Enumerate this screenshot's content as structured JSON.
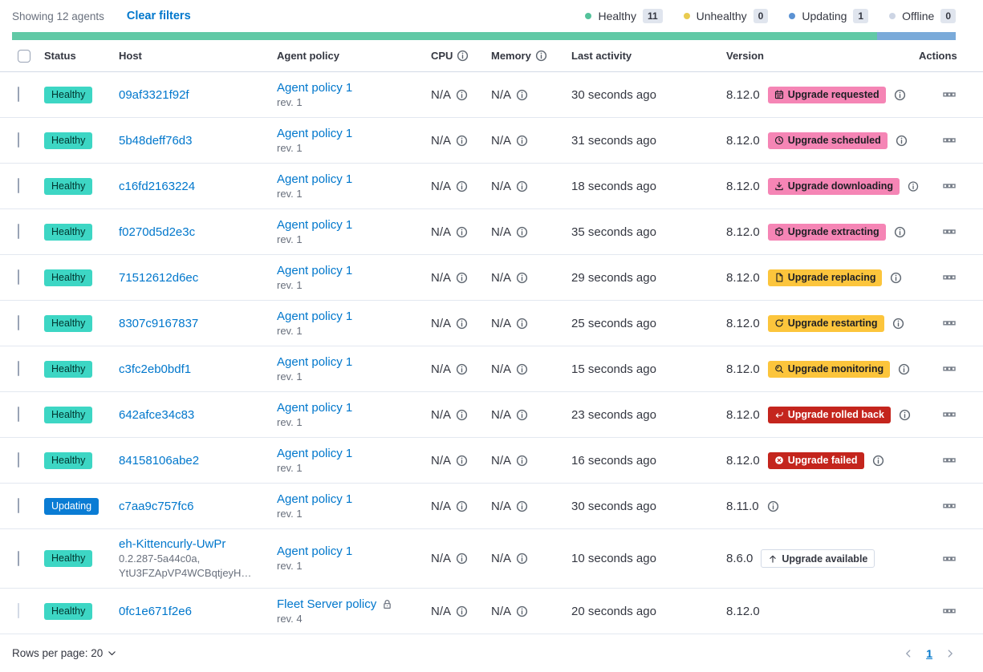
{
  "colors": {
    "link": "#0077cc",
    "healthy_badge_bg": "#3dd6c4",
    "healthy_badge_text": "#00342e",
    "updating_badge_bg": "#0a7cd4",
    "updating_badge_text": "#ffffff",
    "accent_badge_bg": "#f585b5",
    "accent_badge_text": "#1d1e24",
    "warning_badge_bg": "#fcc53c",
    "warning_badge_text": "#1d1e24",
    "danger_badge_bg": "#c4251d",
    "danger_badge_text": "#ffffff"
  },
  "header_bar": {
    "showing_text": "Showing 12 agents",
    "clear_filters_label": "Clear filters",
    "legend": [
      {
        "label": "Healthy",
        "count": "11",
        "dot_color": "#54c29b"
      },
      {
        "label": "Unhealthy",
        "count": "0",
        "dot_color": "#e9cb4f"
      },
      {
        "label": "Updating",
        "count": "1",
        "dot_color": "#5b92d3"
      },
      {
        "label": "Offline",
        "count": "0",
        "dot_color": "#cdd5e4"
      }
    ],
    "health_bar_segments": [
      {
        "status": "healthy",
        "color": "#61c9a6",
        "fraction": 0.9167
      },
      {
        "status": "updating",
        "color": "#7aaad9",
        "fraction": 0.0833
      }
    ]
  },
  "table": {
    "columns": [
      {
        "label": "Status"
      },
      {
        "label": "Host"
      },
      {
        "label": "Agent policy"
      },
      {
        "label": "CPU",
        "info": true
      },
      {
        "label": "Memory",
        "info": true
      },
      {
        "label": "Last activity"
      },
      {
        "label": "Version"
      },
      {
        "label": "Actions",
        "align": "right"
      }
    ]
  },
  "rows": [
    {
      "status": {
        "label": "Healthy",
        "variant": "healthy"
      },
      "host": {
        "name": "09af3321f92f",
        "sub_lines": []
      },
      "policy": {
        "name": "Agent policy 1",
        "rev": "rev. 1",
        "locked": false
      },
      "cpu": "N/A",
      "memory": "N/A",
      "last_activity": "30 seconds ago",
      "version": "8.12.0",
      "upgrade_badge": {
        "label": "Upgrade requested",
        "variant": "accent",
        "icon": "calendar-icon"
      },
      "version_info": true,
      "checkbox_disabled": false
    },
    {
      "status": {
        "label": "Healthy",
        "variant": "healthy"
      },
      "host": {
        "name": "5b48deff76d3",
        "sub_lines": []
      },
      "policy": {
        "name": "Agent policy 1",
        "rev": "rev. 1",
        "locked": false
      },
      "cpu": "N/A",
      "memory": "N/A",
      "last_activity": "31 seconds ago",
      "version": "8.12.0",
      "upgrade_badge": {
        "label": "Upgrade scheduled",
        "variant": "accent",
        "icon": "clock-icon"
      },
      "version_info": true,
      "checkbox_disabled": false
    },
    {
      "status": {
        "label": "Healthy",
        "variant": "healthy"
      },
      "host": {
        "name": "c16fd2163224",
        "sub_lines": []
      },
      "policy": {
        "name": "Agent policy 1",
        "rev": "rev. 1",
        "locked": false
      },
      "cpu": "N/A",
      "memory": "N/A",
      "last_activity": "18 seconds ago",
      "version": "8.12.0",
      "upgrade_badge": {
        "label": "Upgrade downloading",
        "variant": "accent",
        "icon": "download-icon"
      },
      "version_info": true,
      "checkbox_disabled": false
    },
    {
      "status": {
        "label": "Healthy",
        "variant": "healthy"
      },
      "host": {
        "name": "f0270d5d2e3c",
        "sub_lines": []
      },
      "policy": {
        "name": "Agent policy 1",
        "rev": "rev. 1",
        "locked": false
      },
      "cpu": "N/A",
      "memory": "N/A",
      "last_activity": "35 seconds ago",
      "version": "8.12.0",
      "upgrade_badge": {
        "label": "Upgrade extracting",
        "variant": "accent",
        "icon": "package-icon"
      },
      "version_info": true,
      "checkbox_disabled": false
    },
    {
      "status": {
        "label": "Healthy",
        "variant": "healthy"
      },
      "host": {
        "name": "71512612d6ec",
        "sub_lines": []
      },
      "policy": {
        "name": "Agent policy 1",
        "rev": "rev. 1",
        "locked": false
      },
      "cpu": "N/A",
      "memory": "N/A",
      "last_activity": "29 seconds ago",
      "version": "8.12.0",
      "upgrade_badge": {
        "label": "Upgrade replacing",
        "variant": "warning",
        "icon": "document-icon"
      },
      "version_info": true,
      "checkbox_disabled": false
    },
    {
      "status": {
        "label": "Healthy",
        "variant": "healthy"
      },
      "host": {
        "name": "8307c9167837",
        "sub_lines": []
      },
      "policy": {
        "name": "Agent policy 1",
        "rev": "rev. 1",
        "locked": false
      },
      "cpu": "N/A",
      "memory": "N/A",
      "last_activity": "25 seconds ago",
      "version": "8.12.0",
      "upgrade_badge": {
        "label": "Upgrade restarting",
        "variant": "warning",
        "icon": "refresh-icon"
      },
      "version_info": true,
      "checkbox_disabled": false
    },
    {
      "status": {
        "label": "Healthy",
        "variant": "healthy"
      },
      "host": {
        "name": "c3fc2eb0bdf1",
        "sub_lines": []
      },
      "policy": {
        "name": "Agent policy 1",
        "rev": "rev. 1",
        "locked": false
      },
      "cpu": "N/A",
      "memory": "N/A",
      "last_activity": "15 seconds ago",
      "version": "8.12.0",
      "upgrade_badge": {
        "label": "Upgrade monitoring",
        "variant": "warning",
        "icon": "inspect-icon"
      },
      "version_info": true,
      "checkbox_disabled": false
    },
    {
      "status": {
        "label": "Healthy",
        "variant": "healthy"
      },
      "host": {
        "name": "642afce34c83",
        "sub_lines": []
      },
      "policy": {
        "name": "Agent policy 1",
        "rev": "rev. 1",
        "locked": false
      },
      "cpu": "N/A",
      "memory": "N/A",
      "last_activity": "23 seconds ago",
      "version": "8.12.0",
      "upgrade_badge": {
        "label": "Upgrade rolled back",
        "variant": "danger",
        "icon": "return-icon"
      },
      "version_info": true,
      "checkbox_disabled": false
    },
    {
      "status": {
        "label": "Healthy",
        "variant": "healthy"
      },
      "host": {
        "name": "84158106abe2",
        "sub_lines": []
      },
      "policy": {
        "name": "Agent policy 1",
        "rev": "rev. 1",
        "locked": false
      },
      "cpu": "N/A",
      "memory": "N/A",
      "last_activity": "16 seconds ago",
      "version": "8.12.0",
      "upgrade_badge": {
        "label": "Upgrade failed",
        "variant": "danger",
        "icon": "error-icon"
      },
      "version_info": true,
      "checkbox_disabled": false
    },
    {
      "status": {
        "label": "Updating",
        "variant": "updating"
      },
      "host": {
        "name": "c7aa9c757fc6",
        "sub_lines": []
      },
      "policy": {
        "name": "Agent policy 1",
        "rev": "rev. 1",
        "locked": false
      },
      "cpu": "N/A",
      "memory": "N/A",
      "last_activity": "30 seconds ago",
      "version": "8.11.0",
      "upgrade_badge": null,
      "version_info": true,
      "checkbox_disabled": false
    },
    {
      "status": {
        "label": "Healthy",
        "variant": "healthy"
      },
      "host": {
        "name": "eh-Kittencurly-UwPr",
        "sub_lines": [
          "0.2.287-5a44c0a,",
          "YtU3FZApVP4WCBqtjeyH…"
        ]
      },
      "policy": {
        "name": "Agent policy 1",
        "rev": "rev. 1",
        "locked": false
      },
      "cpu": "N/A",
      "memory": "N/A",
      "last_activity": "10 seconds ago",
      "version": "8.6.0",
      "upgrade_badge": {
        "label": "Upgrade available",
        "variant": "hollow",
        "icon": "arrow-up-icon"
      },
      "version_info": false,
      "checkbox_disabled": false
    },
    {
      "status": {
        "label": "Healthy",
        "variant": "healthy"
      },
      "host": {
        "name": "0fc1e671f2e6",
        "sub_lines": []
      },
      "policy": {
        "name": "Fleet Server policy",
        "rev": "rev. 4",
        "locked": true
      },
      "cpu": "N/A",
      "memory": "N/A",
      "last_activity": "20 seconds ago",
      "version": "8.12.0",
      "upgrade_badge": null,
      "version_info": false,
      "checkbox_disabled": true
    }
  ],
  "footer": {
    "rows_per_page_label": "Rows per page: 20",
    "page": "1"
  }
}
